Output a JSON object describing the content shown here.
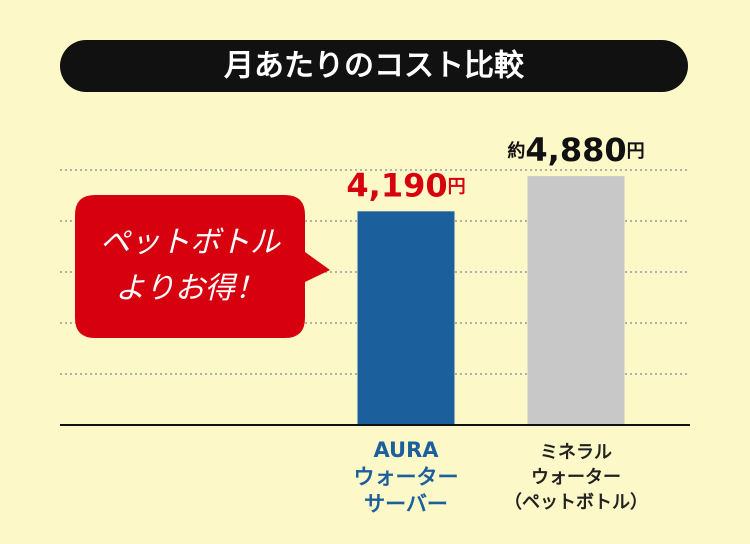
{
  "chart_data": {
    "type": "bar",
    "title": "月あたりのコスト比較",
    "categories": [
      "AURA\nウォーター\nサーバー",
      "ミネラル\nウォーター\n（ペットボトル）"
    ],
    "series": [
      {
        "name": "月あたりのコスト",
        "colors": [
          "#1b5f9c",
          "#c8c8c8"
        ],
        "label_colors": [
          "#d7000f",
          "#111111"
        ],
        "category_colors": [
          "#1b5f9c",
          "#222222"
        ],
        "values": [
          4190,
          4880
        ],
        "value_labels": [
          "4,190円",
          "約4,880円"
        ]
      }
    ],
    "annotation": "ペットボトル\nよりお得！",
    "ylim": [
      0,
      5000
    ],
    "yticks": [
      1000,
      2000,
      3000,
      4000,
      5000
    ],
    "grid": true
  }
}
